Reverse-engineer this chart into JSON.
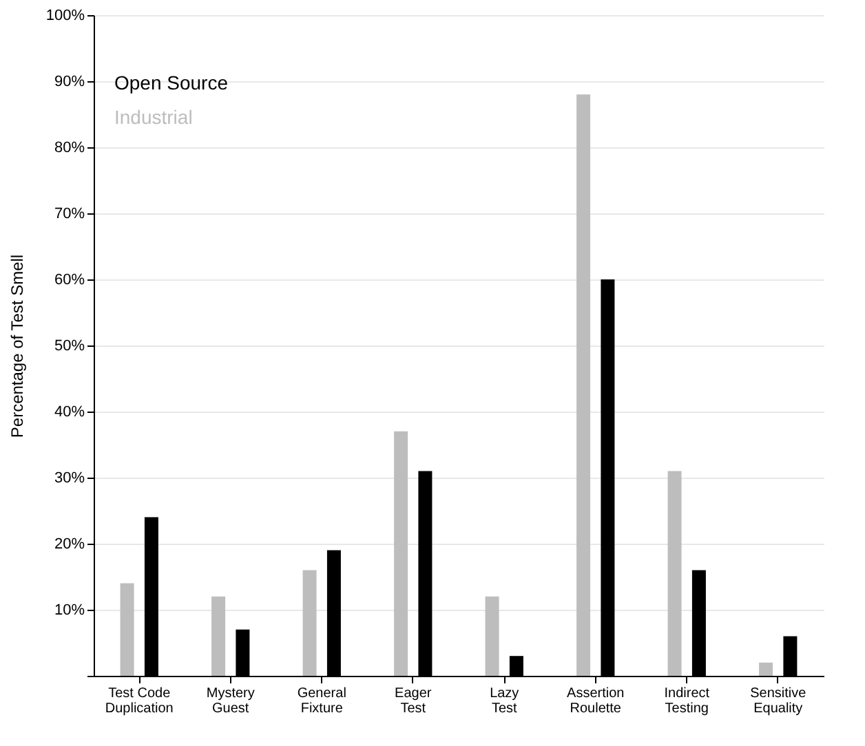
{
  "chart_data": {
    "type": "bar",
    "ylabel": "Percentage of Test Smell",
    "categories": [
      "Test Code\nDuplication",
      "Mystery\nGuest",
      "General\nFixture",
      "Eager\nTest",
      "Lazy\nTest",
      "Assertion\nRoulette",
      "Indirect\nTesting",
      "Sensitive\nEquality"
    ],
    "series": [
      {
        "name": "Industrial",
        "color": "#bdbdbd",
        "values": [
          14,
          12,
          16,
          37,
          12,
          88,
          31,
          2
        ]
      },
      {
        "name": "Open Source",
        "color": "#000000",
        "values": [
          24,
          7,
          19,
          31,
          3,
          60,
          16,
          6
        ]
      }
    ],
    "ylim": [
      0,
      100
    ],
    "yticks": [
      {
        "value": 0,
        "label": null
      },
      {
        "value": 10,
        "label": "10%"
      },
      {
        "value": 20,
        "label": "20%"
      },
      {
        "value": 30,
        "label": "30%"
      },
      {
        "value": 40,
        "label": "40%"
      },
      {
        "value": 50,
        "label": "50%"
      },
      {
        "value": 60,
        "label": "60%"
      },
      {
        "value": 70,
        "label": "70%"
      },
      {
        "value": 80,
        "label": "80%"
      },
      {
        "value": 90,
        "label": "90%"
      },
      {
        "value": 100,
        "label": "100%"
      }
    ],
    "grid": "y",
    "legend": "top left"
  }
}
